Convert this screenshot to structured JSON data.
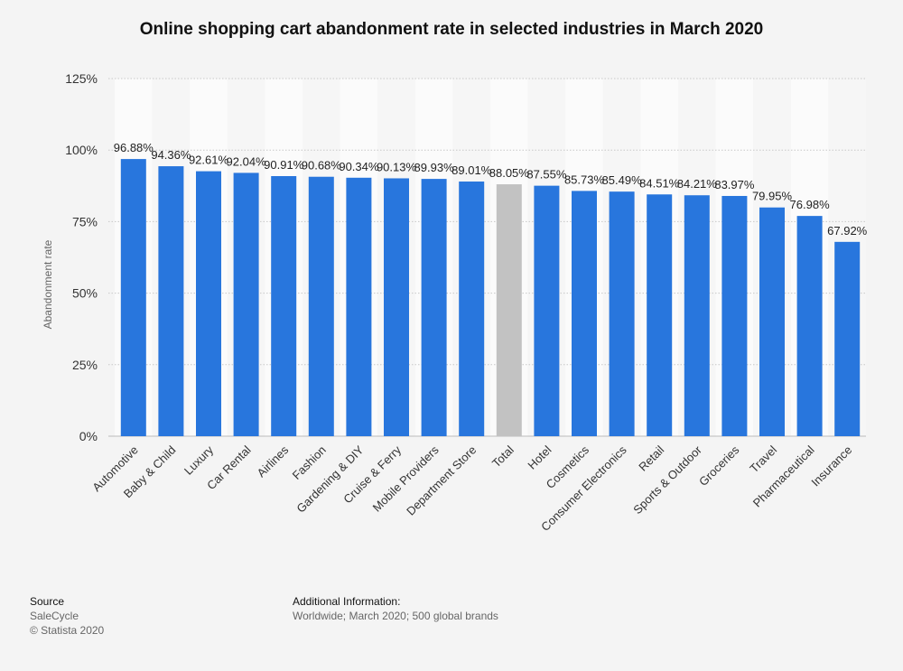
{
  "chart_data": {
    "type": "bar",
    "title": "Online shopping cart abandonment rate in selected industries in March 2020",
    "xlabel": "",
    "ylabel": "Abandonment rate",
    "ylim": [
      0,
      125
    ],
    "yticks": [
      "0%",
      "25%",
      "50%",
      "75%",
      "100%",
      "125%"
    ],
    "grid": true,
    "categories": [
      "Automotive",
      "Baby & Child",
      "Luxury",
      "Car Rental",
      "Airlines",
      "Fashion",
      "Gardening & DIY",
      "Cruise & Ferry",
      "Mobile Providers",
      "Department Store",
      "Total",
      "Hotel",
      "Cosmetics",
      "Consumer Electronics",
      "Retail",
      "Sports & Outdoor",
      "Groceries",
      "Travel",
      "Pharmaceutical",
      "Insurance"
    ],
    "values": [
      96.88,
      94.36,
      92.61,
      92.04,
      90.91,
      90.68,
      90.34,
      90.13,
      89.93,
      89.01,
      88.05,
      87.55,
      85.73,
      85.49,
      84.51,
      84.21,
      83.97,
      79.95,
      76.98,
      67.92
    ],
    "data_labels": [
      "96.88%",
      "94.36%",
      "92.61%",
      "92.04%",
      "90.91%",
      "90.68%",
      "90.34%",
      "90.13%",
      "89.93%",
      "89.01%",
      "88.05%",
      "87.55%",
      "85.73%",
      "85.49%",
      "84.51%",
      "84.21%",
      "83.97%",
      "79.95%",
      "76.98%",
      "67.92%"
    ],
    "colors": {
      "bar": "#2876dd",
      "highlight": "#c2c2c2",
      "highlight_category": "Total"
    }
  },
  "footer": {
    "source_heading": "Source",
    "source": "SaleCycle",
    "copyright": "© Statista 2020",
    "info_heading": "Additional Information:",
    "info": "Worldwide; March 2020; 500 global brands"
  }
}
